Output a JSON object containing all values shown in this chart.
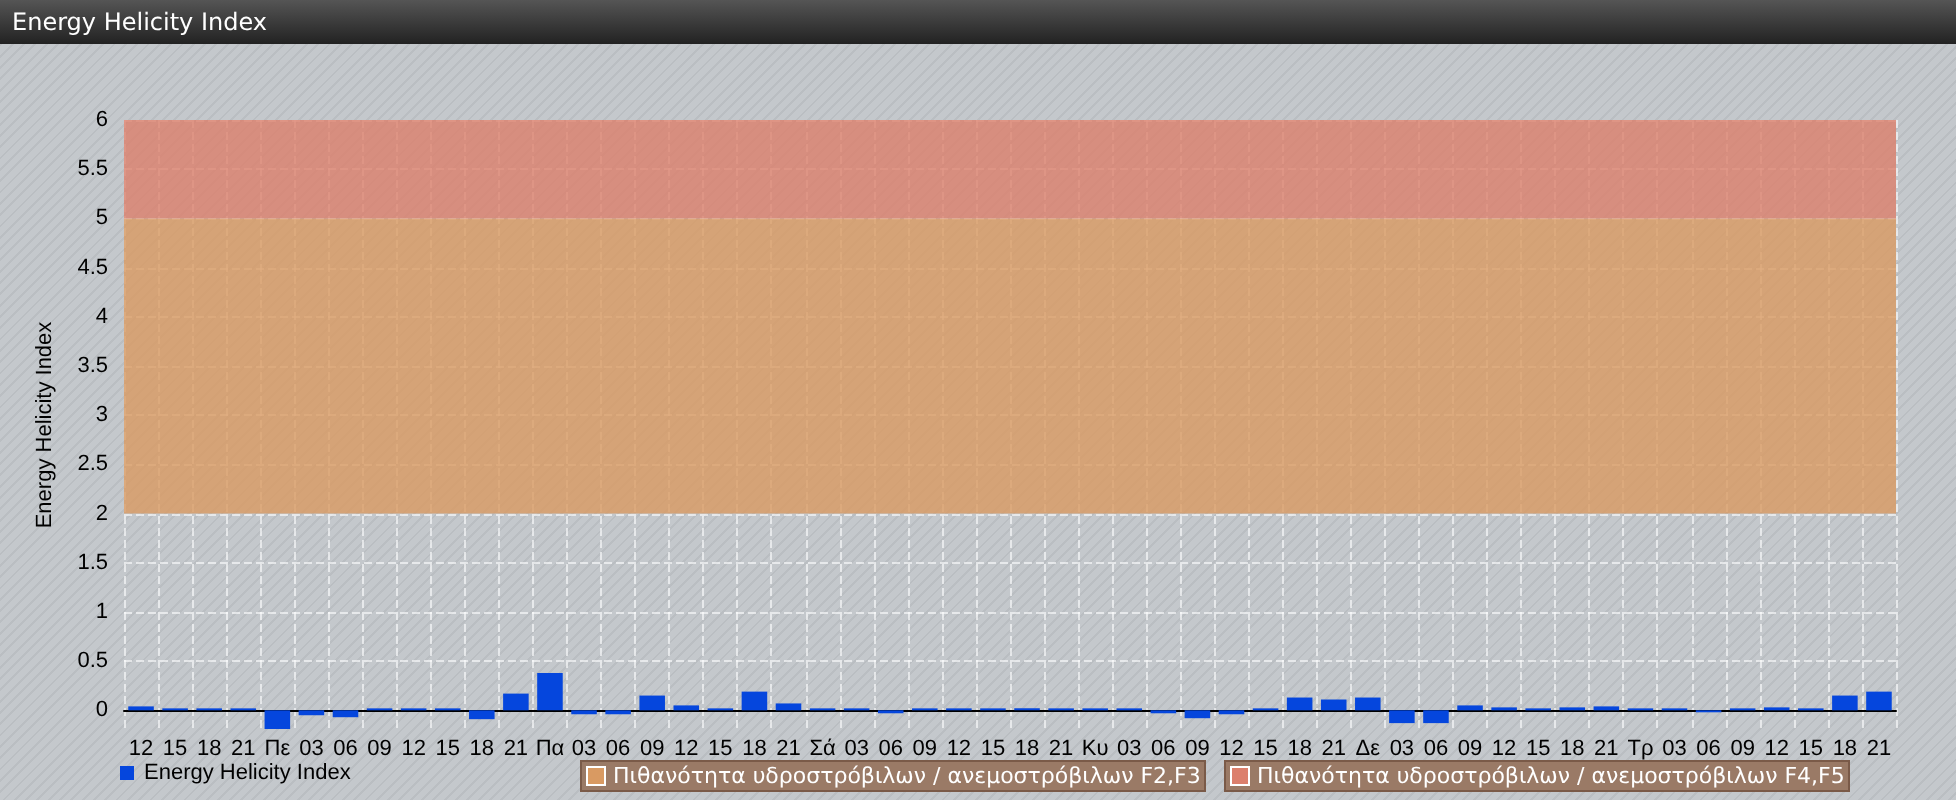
{
  "chart_data": {
    "type": "bar",
    "title": "Energy Helicity Index",
    "ylabel": "Energy Helicity Index",
    "categories": [
      "12",
      "15",
      "18",
      "21",
      "Πε",
      "03",
      "06",
      "09",
      "12",
      "15",
      "18",
      "21",
      "Πα",
      "03",
      "06",
      "09",
      "12",
      "15",
      "18",
      "21",
      "Σά",
      "03",
      "06",
      "09",
      "12",
      "15",
      "18",
      "21",
      "Κυ",
      "03",
      "06",
      "09",
      "12",
      "15",
      "18",
      "21",
      "Δε",
      "03",
      "06",
      "09",
      "12",
      "15",
      "18",
      "21",
      "Τρ",
      "03",
      "06",
      "09",
      "12",
      "15",
      "18",
      "21"
    ],
    "series": [
      {
        "name": "Energy Helicity Index",
        "color": "#0546dd",
        "values": [
          0.04,
          0.02,
          0.02,
          0.02,
          -0.19,
          -0.05,
          -0.07,
          0.02,
          0.02,
          0.02,
          -0.09,
          0.17,
          0.38,
          -0.04,
          -0.04,
          0.15,
          0.05,
          0.02,
          0.19,
          0.07,
          0.02,
          0.02,
          -0.03,
          0.02,
          0.02,
          0.02,
          0.02,
          0.02,
          0.02,
          0.02,
          -0.03,
          -0.08,
          -0.04,
          0.02,
          0.13,
          0.11,
          0.13,
          -0.13,
          -0.13,
          0.05,
          0.03,
          0.02,
          0.03,
          0.04,
          0.02,
          0.02,
          -0.02,
          0.02,
          0.03,
          0.02,
          0.15,
          0.19
        ]
      }
    ],
    "ylim": [
      -0.2,
      6
    ],
    "yticks": [
      0,
      0.5,
      1,
      1.5,
      2,
      2.5,
      3,
      3.5,
      4,
      4.5,
      5,
      5.5,
      6
    ],
    "bands": [
      {
        "axis": "y",
        "from": 2,
        "to": 5,
        "label": "Πιθανότητα υδροστρόβιλων / ανεμοστρόβιλων F2,F3",
        "color": "#d99a62"
      },
      {
        "axis": "y",
        "from": 5,
        "to": 6,
        "label": "Πιθανότητα υδροστρόβιλων / ανεμοστρόβιλων F4,F5",
        "color": "#dc7f6c"
      }
    ],
    "grid": true,
    "legend": "bottom left"
  }
}
